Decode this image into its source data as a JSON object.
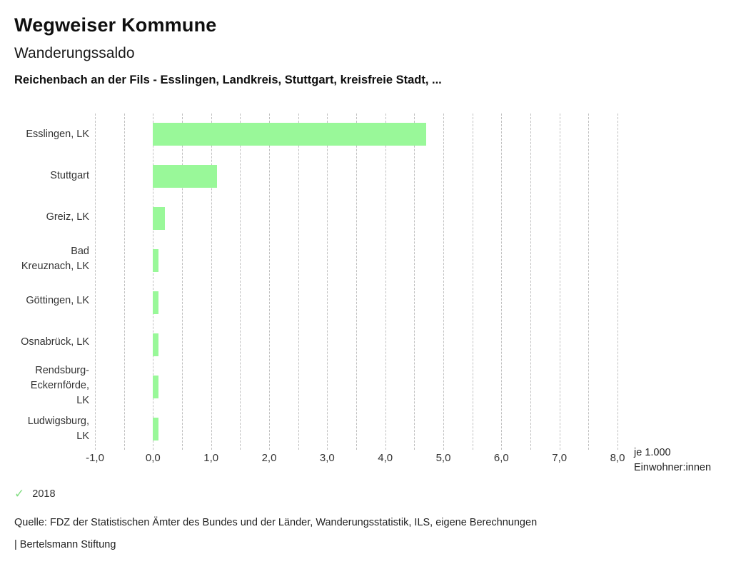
{
  "header": {
    "title": "Wegweiser Kommune",
    "subtitle": "Wanderungssaldo",
    "selection": "Reichenbach an der Fils - Esslingen, Landkreis, Stuttgart, kreisfreie Stadt, ..."
  },
  "chart_data": {
    "type": "bar",
    "orientation": "horizontal",
    "title": "Wanderungssaldo",
    "categories": [
      "Esslingen, LK",
      "Stuttgart",
      "Greiz, LK",
      "Bad Kreuznach, LK",
      "Göttingen, LK",
      "Osnabrück, LK",
      "Rendsburg-Eckernförde, LK",
      "Ludwigsburg, LK"
    ],
    "series": [
      {
        "name": "2018",
        "values": [
          4.7,
          1.1,
          0.2,
          0.1,
          0.1,
          0.1,
          0.1,
          0.1
        ]
      }
    ],
    "xlim": [
      -1,
      8
    ],
    "tick_step": 1,
    "gridline_step": 0.5,
    "tick_labels": [
      "-1,0",
      "0,0",
      "1,0",
      "2,0",
      "3,0",
      "4,0",
      "5,0",
      "6,0",
      "7,0",
      "8,0"
    ],
    "x_unit_line1": "je 1.000",
    "x_unit_line2": "Einwohner:innen",
    "grid": true,
    "legend_position": "bottom-left",
    "bar_color": "#99f899",
    "grid_color": "#c0c0c0"
  },
  "legend": {
    "check_icon": "✓",
    "check_color": "#82dd82",
    "label": "2018"
  },
  "footer": {
    "source": "Quelle: FDZ der Statistischen Ämter des Bundes und der Länder, Wanderungsstatistik, ILS, eigene Berechnungen",
    "branding": "| Bertelsmann Stiftung"
  }
}
